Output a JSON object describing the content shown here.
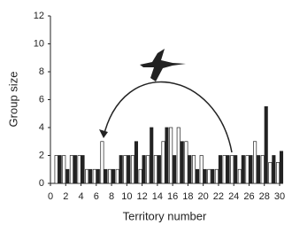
{
  "chart_data": {
    "type": "bar",
    "x_label": "Territory number",
    "y_label": "Group size",
    "categories": [
      1,
      2,
      3,
      4,
      5,
      6,
      7,
      8,
      9,
      10,
      11,
      12,
      13,
      14,
      15,
      16,
      17,
      18,
      19,
      20,
      21,
      22,
      23,
      24,
      25,
      26,
      27,
      28,
      29,
      30
    ],
    "series": [
      {
        "color": "#ffffff",
        "values": [
          2,
          2,
          2,
          2,
          1,
          1,
          3,
          1,
          1,
          2,
          2,
          1,
          2,
          2,
          3,
          4,
          4,
          3,
          2,
          2,
          1,
          1,
          2,
          2,
          1,
          2,
          3,
          2,
          1.5,
          1.5
        ]
      },
      {
        "color": "#222222",
        "values": [
          2,
          1,
          2,
          2,
          1,
          1,
          1,
          1,
          2,
          2,
          3,
          2,
          4,
          2,
          4,
          2,
          3,
          2,
          1,
          1,
          1,
          2,
          2,
          2,
          2,
          2,
          2,
          5.5,
          2,
          2.3
        ]
      }
    ],
    "xlim": [
      0,
      30
    ],
    "xticks": [
      0,
      2,
      4,
      6,
      8,
      10,
      12,
      14,
      16,
      18,
      20,
      22,
      24,
      26,
      28,
      30
    ],
    "ylim": [
      0,
      12
    ],
    "yticks": [
      0,
      2,
      4,
      6,
      8,
      10,
      12
    ]
  }
}
